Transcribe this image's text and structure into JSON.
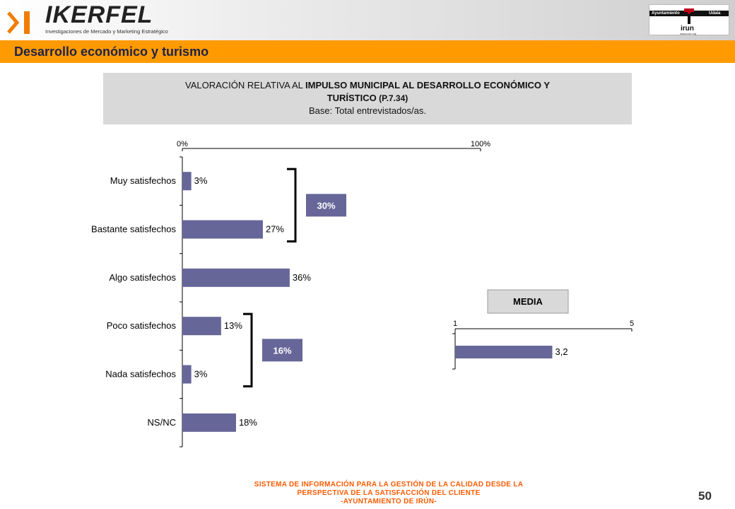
{
  "brand": {
    "name": "IKERFEL",
    "tagline": "Investigaciones de Mercado y Marketing Estratégico"
  },
  "city_logo": {
    "left_label": "Ayuntamiento",
    "right_label": "Udala",
    "name": "irun",
    "url": "www.irun.org"
  },
  "section_title": "Desarrollo económico y turismo",
  "info": {
    "line1_prefix": "VALORACIÓN RELATIVA AL ",
    "line1_bold": "IMPULSO MUNICIPAL AL DESARROLLO ECONÓMICO Y",
    "line2_bold": "TURÍSTICO",
    "line2_suffix": " (P.7.34)",
    "base": "Base: Total entrevistados/as."
  },
  "chart_data": [
    {
      "type": "bar",
      "orientation": "horizontal",
      "categories": [
        "Muy satisfechos",
        "Bastante satisfechos",
        "Algo satisfechos",
        "Poco satisfechos",
        "Nada satisfechos",
        "NS/NC"
      ],
      "values": [
        3,
        27,
        36,
        13,
        3,
        18
      ],
      "value_labels": [
        "3%",
        "27%",
        "36%",
        "13%",
        "3%",
        "18%"
      ],
      "xlim": [
        0,
        100
      ],
      "tick_labels": [
        "0%",
        "100%"
      ],
      "bar_color": "#666699",
      "groups": [
        {
          "label": "30%",
          "from": 0,
          "to": 1
        },
        {
          "label": "16%",
          "from": 3,
          "to": 4
        }
      ]
    },
    {
      "type": "bar",
      "orientation": "horizontal",
      "title": "MEDIA",
      "categories": [
        ""
      ],
      "values": [
        3.2
      ],
      "value_labels": [
        "3,2"
      ],
      "xlim": [
        1,
        5
      ],
      "tick_labels": [
        "1",
        "5"
      ],
      "bar_color": "#666699"
    }
  ],
  "footer": {
    "line1": "SISTEMA DE INFORMACIÓN PARA LA GESTIÓN DE LA CALIDAD DESDE LA",
    "line2": "PERSPECTIVA DE LA SATISFACCIÓN DEL CLIENTE",
    "line3": "-AYUNTAMIENTO DE IRÚN-"
  },
  "page_number": "50"
}
